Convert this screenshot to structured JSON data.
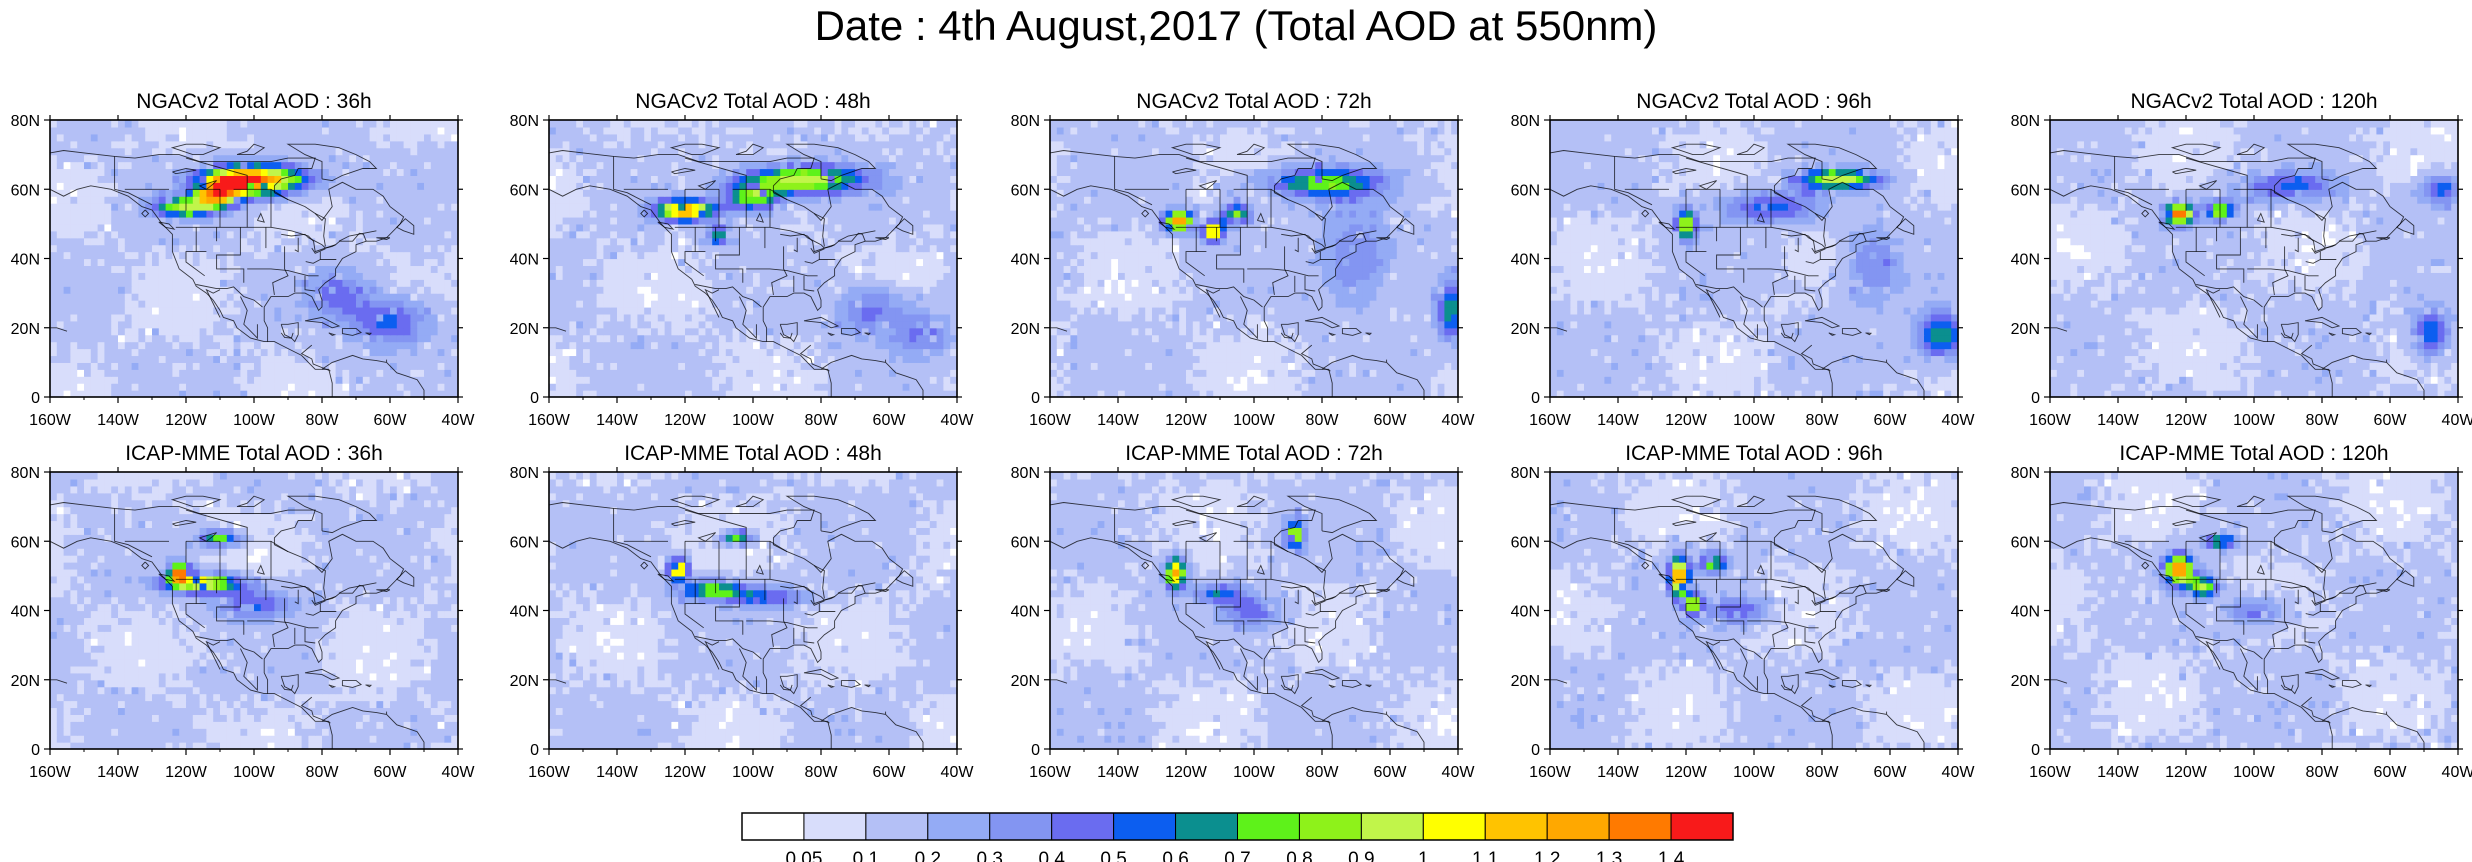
{
  "title": "Date : 4th August,2017 (Total AOD at 550nm)",
  "chart_data": {
    "type": "heatmap",
    "map": {
      "lon_range": [
        -160,
        -40
      ],
      "lat_range": [
        0,
        80
      ],
      "x_ticks": [
        "160W",
        "140W",
        "120W",
        "100W",
        "80W",
        "60W",
        "40W"
      ],
      "y_ticks": [
        "0",
        "20N",
        "40N",
        "60N",
        "80N"
      ]
    },
    "rows": [
      {
        "model": "NGACv2",
        "panels": [
          {
            "title": "NGACv2 Total AOD : 36h",
            "hotspots": [
              {
                "lon": -98,
                "lat": 63,
                "sx": 10,
                "sy": 3,
                "aod": 1.25
              },
              {
                "lon": -108,
                "lat": 61,
                "sx": 6,
                "sy": 3,
                "aod": 0.95
              },
              {
                "lon": -120,
                "lat": 55,
                "sx": 7,
                "sy": 2,
                "aod": 0.85
              },
              {
                "lon": -112,
                "lat": 58,
                "sx": 4,
                "sy": 2,
                "aod": 0.75
              },
              {
                "lon": -60,
                "lat": 22,
                "sx": 8,
                "sy": 5,
                "aod": 0.55
              },
              {
                "lon": -75,
                "lat": 30,
                "sx": 6,
                "sy": 5,
                "aod": 0.42
              }
            ]
          },
          {
            "title": "NGACv2 Total AOD : 48h",
            "hotspots": [
              {
                "lon": -85,
                "lat": 63,
                "sx": 12,
                "sy": 3,
                "aod": 1.0
              },
              {
                "lon": -120,
                "lat": 54,
                "sx": 6,
                "sy": 2,
                "aod": 1.3
              },
              {
                "lon": -100,
                "lat": 58,
                "sx": 6,
                "sy": 3,
                "aod": 0.8
              },
              {
                "lon": -110,
                "lat": 47,
                "sx": 2,
                "sy": 2,
                "aod": 0.75
              },
              {
                "lon": -65,
                "lat": 25,
                "sx": 7,
                "sy": 5,
                "aod": 0.45
              },
              {
                "lon": -50,
                "lat": 18,
                "sx": 6,
                "sy": 5,
                "aod": 0.4
              }
            ]
          },
          {
            "title": "NGACv2 Total AOD : 72h",
            "hotspots": [
              {
                "lon": -122,
                "lat": 51,
                "sx": 3,
                "sy": 2,
                "aod": 1.35
              },
              {
                "lon": -112,
                "lat": 48,
                "sx": 2,
                "sy": 2,
                "aod": 1.3
              },
              {
                "lon": -105,
                "lat": 53,
                "sx": 3,
                "sy": 2,
                "aod": 0.85
              },
              {
                "lon": -80,
                "lat": 62,
                "sx": 12,
                "sy": 3,
                "aod": 0.75
              },
              {
                "lon": -42,
                "lat": 25,
                "sx": 3,
                "sy": 6,
                "aod": 0.65
              },
              {
                "lon": -70,
                "lat": 40,
                "sx": 8,
                "sy": 10,
                "aod": 0.42
              }
            ]
          },
          {
            "title": "NGACv2 Total AOD : 96h",
            "hotspots": [
              {
                "lon": -120,
                "lat": 50,
                "sx": 2,
                "sy": 3,
                "aod": 1.0
              },
              {
                "lon": -75,
                "lat": 63,
                "sx": 8,
                "sy": 2,
                "aod": 0.95
              },
              {
                "lon": -95,
                "lat": 55,
                "sx": 10,
                "sy": 3,
                "aod": 0.55
              },
              {
                "lon": -45,
                "lat": 18,
                "sx": 5,
                "sy": 5,
                "aod": 0.7
              },
              {
                "lon": -65,
                "lat": 38,
                "sx": 6,
                "sy": 8,
                "aod": 0.42
              }
            ]
          },
          {
            "title": "NGACv2 Total AOD : 120h",
            "hotspots": [
              {
                "lon": -122,
                "lat": 53,
                "sx": 3,
                "sy": 2,
                "aod": 1.4
              },
              {
                "lon": -110,
                "lat": 54,
                "sx": 3,
                "sy": 2,
                "aod": 0.8
              },
              {
                "lon": -90,
                "lat": 61,
                "sx": 10,
                "sy": 3,
                "aod": 0.5
              },
              {
                "lon": -48,
                "lat": 19,
                "sx": 4,
                "sy": 5,
                "aod": 0.6
              },
              {
                "lon": -45,
                "lat": 60,
                "sx": 4,
                "sy": 3,
                "aod": 0.55
              }
            ]
          }
        ]
      },
      {
        "model": "ICAP-MME",
        "panels": [
          {
            "title": "ICAP-MME Total AOD : 36h",
            "hotspots": [
              {
                "lon": -115,
                "lat": 48,
                "sx": 8,
                "sy": 2,
                "aod": 1.05
              },
              {
                "lon": -122,
                "lat": 51,
                "sx": 2,
                "sy": 2,
                "aod": 1.25
              },
              {
                "lon": -110,
                "lat": 61,
                "sx": 4,
                "sy": 1.5,
                "aod": 0.8
              },
              {
                "lon": -100,
                "lat": 42,
                "sx": 8,
                "sy": 3,
                "aod": 0.5
              }
            ]
          },
          {
            "title": "ICAP-MME Total AOD : 48h",
            "hotspots": [
              {
                "lon": -122,
                "lat": 52,
                "sx": 2,
                "sy": 2,
                "aod": 1.3
              },
              {
                "lon": -112,
                "lat": 46,
                "sx": 7,
                "sy": 2,
                "aod": 0.8
              },
              {
                "lon": -105,
                "lat": 61,
                "sx": 3,
                "sy": 1.5,
                "aod": 0.8
              },
              {
                "lon": -95,
                "lat": 44,
                "sx": 8,
                "sy": 2,
                "aod": 0.5
              }
            ]
          },
          {
            "title": "ICAP-MME Total AOD : 72h",
            "hotspots": [
              {
                "lon": -123,
                "lat": 51,
                "sx": 2,
                "sy": 3,
                "aod": 1.3
              },
              {
                "lon": -88,
                "lat": 62,
                "sx": 2,
                "sy": 3,
                "aod": 0.9
              },
              {
                "lon": -110,
                "lat": 45,
                "sx": 5,
                "sy": 2,
                "aod": 0.55
              },
              {
                "lon": -100,
                "lat": 40,
                "sx": 6,
                "sy": 3,
                "aod": 0.45
              }
            ]
          },
          {
            "title": "ICAP-MME Total AOD : 96h",
            "hotspots": [
              {
                "lon": -122,
                "lat": 50,
                "sx": 2,
                "sy": 4,
                "aod": 1.3
              },
              {
                "lon": -112,
                "lat": 54,
                "sx": 3,
                "sy": 2,
                "aod": 0.8
              },
              {
                "lon": -118,
                "lat": 42,
                "sx": 2,
                "sy": 2,
                "aod": 0.9
              },
              {
                "lon": -105,
                "lat": 40,
                "sx": 7,
                "sy": 3,
                "aod": 0.45
              }
            ]
          },
          {
            "title": "ICAP-MME Total AOD : 120h",
            "hotspots": [
              {
                "lon": -122,
                "lat": 52,
                "sx": 3,
                "sy": 3,
                "aod": 1.35
              },
              {
                "lon": -115,
                "lat": 47,
                "sx": 3,
                "sy": 2,
                "aod": 0.9
              },
              {
                "lon": -110,
                "lat": 60,
                "sx": 3,
                "sy": 1.5,
                "aod": 0.75
              },
              {
                "lon": -100,
                "lat": 40,
                "sx": 6,
                "sy": 3,
                "aod": 0.45
              }
            ]
          }
        ]
      }
    ],
    "colorbar": {
      "colors": [
        "#ffffff",
        "#d8ddfb",
        "#b4c0f6",
        "#94abf5",
        "#8395f2",
        "#6a6cf0",
        "#0c5ef0",
        "#0b8f8f",
        "#5ef21a",
        "#8ef21a",
        "#c1f54a",
        "#ffff00",
        "#ffc300",
        "#ffa800",
        "#ff7a00",
        "#f81a1a"
      ],
      "labels": [
        "0.05",
        "0.1",
        "0.2",
        "0.3",
        "0.4",
        "0.5",
        "0.6",
        "0.7",
        "0.8",
        "0.9",
        "1",
        "1.1",
        "1.2",
        "1.3",
        "1.4"
      ],
      "thresholds": [
        0.05,
        0.1,
        0.2,
        0.3,
        0.4,
        0.5,
        0.6,
        0.7,
        0.8,
        0.9,
        1.0,
        1.1,
        1.2,
        1.3,
        1.4
      ]
    }
  }
}
